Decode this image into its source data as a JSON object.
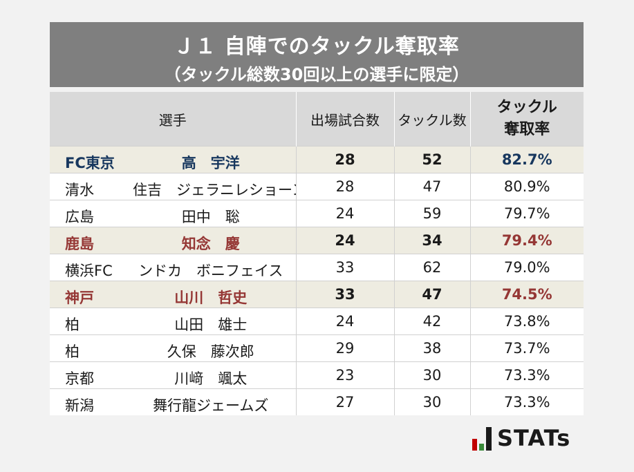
{
  "title": {
    "main": "Ｊ１ 自陣でのタックル奪取率",
    "sub": "（タックル総数30回以上の選手に限定）"
  },
  "table": {
    "headers": {
      "player": "選手",
      "games": "出場試合数",
      "tackles": "タックル数",
      "rate_line1": "タックル",
      "rate_line2": "奪取率"
    },
    "rows": [
      {
        "club": "FC東京",
        "name": "高　宇洋",
        "games": "28",
        "tackles": "52",
        "rate": "82.7%"
      },
      {
        "club": "清水",
        "name": "住吉　ジェラニレショーン",
        "games": "28",
        "tackles": "47",
        "rate": "80.9%"
      },
      {
        "club": "広島",
        "name": "田中　聡",
        "games": "24",
        "tackles": "59",
        "rate": "79.7%"
      },
      {
        "club": "鹿島",
        "name": "知念　慶",
        "games": "24",
        "tackles": "34",
        "rate": "79.4%"
      },
      {
        "club": "横浜FC",
        "name": "ンドカ　ボニフェイス",
        "games": "33",
        "tackles": "62",
        "rate": "79.0%"
      },
      {
        "club": "神戸",
        "name": "山川　哲史",
        "games": "33",
        "tackles": "47",
        "rate": "74.5%"
      },
      {
        "club": "柏",
        "name": "山田　雄士",
        "games": "24",
        "tackles": "42",
        "rate": "73.8%"
      },
      {
        "club": "柏",
        "name": "久保　藤次郎",
        "games": "29",
        "tackles": "38",
        "rate": "73.7%"
      },
      {
        "club": "京都",
        "name": "川﨑　颯太",
        "games": "23",
        "tackles": "30",
        "rate": "73.3%"
      },
      {
        "club": "新潟",
        "name": "舞行龍ジェームズ",
        "games": "27",
        "tackles": "30",
        "rate": "73.3%"
      }
    ]
  },
  "colors": {
    "title_bg": "#7f7f7f",
    "header_bg": "#d9d9d9",
    "highlight_bg": "#eeece1",
    "fc_tokyo": "#17375e",
    "highlight_red": "#953735"
  },
  "logo": {
    "text": "STATs",
    "icon": "stats-bars-logo-icon"
  }
}
